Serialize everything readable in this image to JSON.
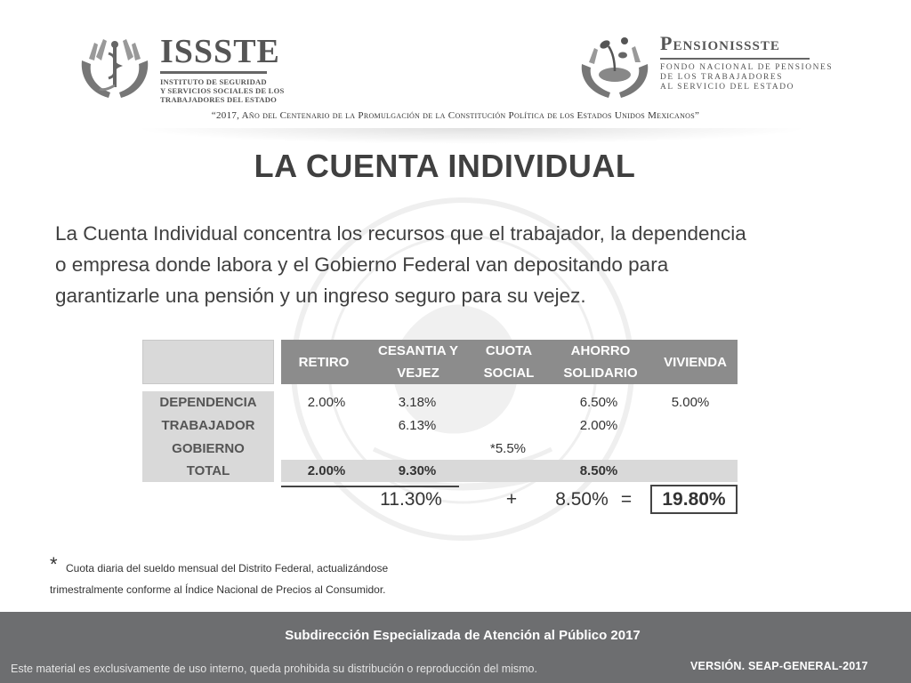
{
  "header": {
    "issste": {
      "name": "ISSSTE",
      "subtitle_lines": [
        "Instituto de Seguridad",
        "y Servicios Sociales de los",
        "Trabajadores del Estado"
      ]
    },
    "pensionissste": {
      "name": "Pensionissste",
      "subtitle_lines": [
        "Fondo Nacional de Pensiones",
        "de los Trabajadores",
        "al Servicio del Estado"
      ]
    },
    "motto": "“2017, Año del Centenario de la Promulgación de la Constitución Política de los Estados Unidos Mexicanos”"
  },
  "title": "LA CUENTA INDIVIDUAL",
  "intro_lines": [
    "La Cuenta Individual concentra los recursos que el trabajador, la dependencia",
    "o empresa donde labora y el Gobierno Federal van depositando para",
    "garantizarle una pensión y un ingreso seguro para su vejez."
  ],
  "table": {
    "columns": [
      [
        "RETIRO"
      ],
      [
        "CESANTIA Y",
        "VEJEZ"
      ],
      [
        "CUOTA",
        "SOCIAL"
      ],
      [
        "AHORRO",
        "SOLIDARIO"
      ],
      [
        "VIVIENDA"
      ]
    ],
    "rows": [
      {
        "label": "DEPENDENCIA",
        "cells": [
          "2.00%",
          "3.18%",
          "",
          "6.50%",
          "5.00%"
        ]
      },
      {
        "label": "TRABAJADOR",
        "cells": [
          "",
          "6.13%",
          "",
          "2.00%",
          ""
        ]
      },
      {
        "label": "GOBIERNO",
        "cells": [
          "",
          "",
          "*5.5%",
          "",
          ""
        ]
      },
      {
        "label": "TOTAL",
        "cells": [
          "2.00%",
          "9.30%",
          "",
          "8.50%",
          ""
        ]
      }
    ],
    "summary": {
      "subtotal": "11.30%",
      "plus": "+",
      "second": "8.50%",
      "equals": "=",
      "grand_total": "19.80%"
    }
  },
  "footnote": {
    "marker": "*",
    "line1": "Cuota diaria del sueldo mensual del Distrito Federal, actualizándose",
    "line2": "trimestralmente conforme al Índice Nacional de Precios al  Consumidor."
  },
  "footer": {
    "title": "Subdirección Especializada de Atención al  Público 2017",
    "note": "Este material es exclusivamente de uso interno, queda prohibida su distribución o reproducción del  mismo.",
    "version": "VERSIÓN. SEAP-GENERAL-2017"
  },
  "colors": {
    "header_bar": "#8c8c8c",
    "label_bg": "#d9d9d9",
    "footer_bg": "#6d6e70",
    "text": "#404040"
  }
}
